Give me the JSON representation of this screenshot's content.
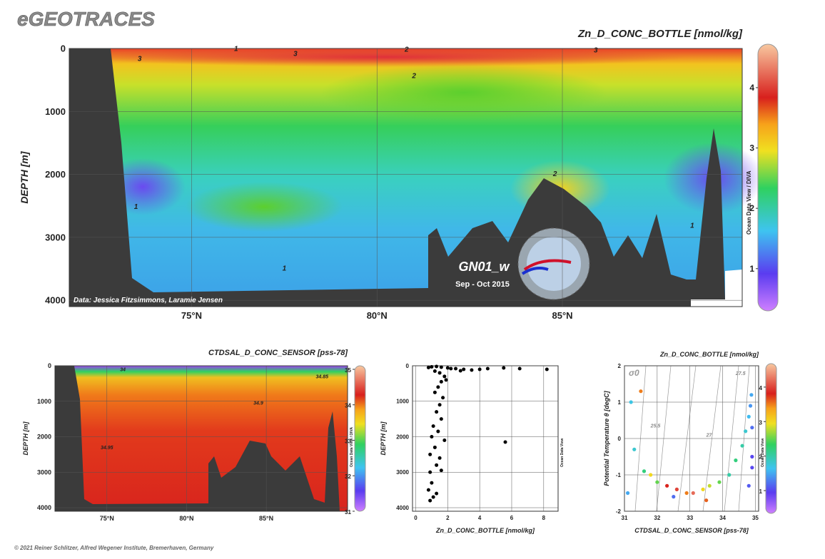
{
  "header": {
    "title": "eGEOTRACES"
  },
  "footer": {
    "credit": "© 2021 Reiner Schlitzer, Alfred Wegener Institute, Bremerhaven, Germany"
  },
  "chart_data": [
    {
      "type": "section",
      "title": "Zn_D_CONC_BOTTLE [nmol/kg]",
      "ylabel": "DEPTH [m]",
      "xlim": [
        71.7,
        89.85
      ],
      "ylim": [
        4100,
        0
      ],
      "xticks": [
        {
          "value": 75,
          "label": "75°N"
        },
        {
          "value": 80,
          "label": "80°N"
        },
        {
          "value": 85,
          "label": "85°N"
        }
      ],
      "yticks": [
        0,
        1000,
        2000,
        3000,
        4000
      ],
      "grid": true,
      "clim": [
        0.3,
        4.72
      ],
      "cticks": [
        1,
        2,
        3,
        4
      ],
      "colorbar_label": "Ocean Data View / DIVA",
      "credit": "Data: Jessica Fitzsimmons, Laramie Jensen",
      "cruise": "GN01_w",
      "period": "Sep - Oct 2015",
      "contour_labels": [
        {
          "value": 3,
          "x": 73.6,
          "y": 200
        },
        {
          "value": 3,
          "x": 77.8,
          "y": 120
        },
        {
          "value": 3,
          "x": 85.9,
          "y": 60
        },
        {
          "value": 2,
          "x": 81.0,
          "y": 470
        },
        {
          "value": 2,
          "x": 84.8,
          "y": 2030
        },
        {
          "value": 2,
          "x": 80.8,
          "y": 50
        },
        {
          "value": 1,
          "x": 73.5,
          "y": 2550
        },
        {
          "value": 1,
          "x": 77.5,
          "y": 3530
        },
        {
          "value": 1,
          "x": 88.5,
          "y": 2850
        },
        {
          "value": 1,
          "x": 76.2,
          "y": 40
        }
      ]
    },
    {
      "type": "section",
      "title": "CTDSAL_D_CONC_SENSOR [pss-78]",
      "ylabel": "DEPTH [m]",
      "xlim": [
        71.74,
        90.1
      ],
      "ylim": [
        4100,
        0
      ],
      "xticks": [
        {
          "value": 75,
          "label": "75°N"
        },
        {
          "value": 80,
          "label": "80°N"
        },
        {
          "value": 85,
          "label": "85°N"
        }
      ],
      "yticks": [
        0,
        1000,
        2000,
        3000,
        4000
      ],
      "grid": true,
      "clim": [
        31,
        35.1
      ],
      "cticks": [
        31,
        32,
        33,
        34,
        35
      ],
      "colorbar_label": "Ocean Data View / DIVA",
      "contour_labels": [
        {
          "value": 34,
          "x": 76,
          "y": 150
        },
        {
          "value": 34.85,
          "x": 88.5,
          "y": 350
        },
        {
          "value": 34.9,
          "x": 84.5,
          "y": 1100
        },
        {
          "value": 34.95,
          "x": 75,
          "y": 2350
        }
      ]
    },
    {
      "type": "scatter",
      "xlabel": "Zn_D_CONC_BOTTLE [nmol/kg]",
      "ylabel": "DEPTH [m]",
      "side_label": "Ocean Data View",
      "xlim": [
        -0.2,
        8.9
      ],
      "ylim": [
        4100,
        0
      ],
      "xticks": [
        0,
        2,
        4,
        6,
        8
      ],
      "yticks": [
        0,
        1000,
        2000,
        3000,
        4000
      ],
      "grid": true,
      "color": "#000000",
      "x": [
        0.8,
        1.0,
        1.3,
        1.6,
        2.0,
        2.5,
        3.0,
        3.5,
        4.0,
        4.5,
        5.5,
        6.5,
        8.2,
        1.2,
        1.5,
        1.8,
        1.6,
        1.4,
        1.2,
        1.7,
        1.5,
        1.3,
        1.6,
        1.1,
        1.4,
        1.0,
        1.8,
        1.2,
        0.9,
        1.5,
        1.3,
        0.9,
        1.6,
        1.0,
        0.8,
        1.1,
        0.9,
        1.3,
        5.6,
        2.2,
        2.8,
        1.9
      ],
      "values": [
        50,
        30,
        20,
        40,
        60,
        80,
        100,
        120,
        100,
        80,
        60,
        80,
        100,
        150,
        200,
        300,
        450,
        600,
        750,
        900,
        1100,
        1300,
        1500,
        1700,
        1850,
        2000,
        2100,
        2300,
        2500,
        2600,
        2800,
        3000,
        2950,
        3300,
        3500,
        3700,
        3800,
        3600,
        2150,
        80,
        140,
        400
      ]
    },
    {
      "type": "ts",
      "title": "Zn_D_CONC_BOTTLE [nmol/kg]",
      "xlabel": "CTDSAL_D_CONC_SENSOR [pss-78]",
      "ylabel": "Potential Temperature θ [degC]",
      "side_label": "Ocean Data View",
      "xlim": [
        31,
        35.1
      ],
      "ylim": [
        -2,
        2
      ],
      "xticks": [
        31,
        32,
        33,
        34,
        35
      ],
      "yticks": [
        -2,
        -1,
        0,
        1,
        2
      ],
      "grid": true,
      "clim": [
        0.34,
        4.68
      ],
      "cticks": [
        1,
        2,
        3,
        4
      ],
      "isopycnal_name": "σ0",
      "isopycnal_labels": [
        {
          "value": 25.5,
          "x": 31.8,
          "y": 0.3
        },
        {
          "value": 27,
          "x": 33.5,
          "y": 0.05
        },
        {
          "value": 27.5,
          "x": 34.4,
          "y": 1.75
        }
      ],
      "x": [
        31.1,
        31.2,
        31.5,
        31.3,
        31.6,
        31.8,
        32.0,
        32.3,
        32.6,
        32.9,
        33.1,
        33.4,
        33.6,
        33.9,
        34.2,
        34.4,
        34.6,
        34.7,
        34.8,
        34.85,
        34.9,
        34.9,
        34.9,
        34.88,
        34.8,
        33.5,
        32.5
      ],
      "values": [
        -1.5,
        1.0,
        1.3,
        -0.3,
        -0.9,
        -1.0,
        -1.2,
        -1.3,
        -1.4,
        -1.5,
        -1.5,
        -1.4,
        -1.3,
        -1.2,
        -1.0,
        -0.6,
        -0.2,
        0.2,
        0.6,
        0.9,
        0.3,
        -0.5,
        -0.8,
        1.2,
        -1.3,
        -1.7,
        -1.6
      ],
      "z": [
        1.5,
        1.7,
        3.5,
        1.8,
        2.2,
        3.0,
        2.5,
        3.8,
        4.0,
        3.5,
        4.2,
        3.0,
        2.8,
        2.5,
        2.0,
        2.2,
        2.0,
        1.8,
        1.6,
        1.4,
        1.2,
        1.0,
        1.0,
        1.5,
        1.1,
        3.6,
        1.2
      ]
    }
  ]
}
